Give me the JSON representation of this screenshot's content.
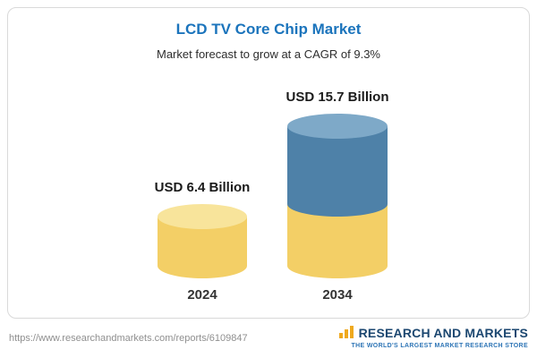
{
  "header": {
    "title": "LCD TV Core Chip Market",
    "subtitle": "Market forecast to grow at a CAGR of 9.3%"
  },
  "chart_data": {
    "type": "bar",
    "subtype": "3d-cylinder",
    "title": "LCD TV Core Chip Market",
    "subtitle": "Market forecast to grow at a CAGR of 9.3%",
    "categories": [
      "2024",
      "2034"
    ],
    "values": [
      6.4,
      15.7
    ],
    "value_labels": [
      "USD 6.4 Billion",
      "USD 15.7 Billion"
    ],
    "unit": "USD Billion",
    "cagr_percent": 9.3,
    "ylim": [
      0,
      17
    ],
    "grid": false,
    "legend": false,
    "colors": {
      "base": "#F3CF66",
      "base_cap": "#F8E49B",
      "growth": "#4E81A8",
      "growth_cap": "#7EA9C8"
    },
    "stacking_note": "2034 column repeats the 2024 base value in yellow with the growth portion to 15.7 shown in blue"
  },
  "footer": {
    "url": "https://www.researchandmarkets.com/reports/6109847",
    "logo": {
      "name": "RESEARCH AND MARKETS",
      "tagline": "THE WORLD'S LARGEST MARKET RESEARCH STORE"
    }
  }
}
